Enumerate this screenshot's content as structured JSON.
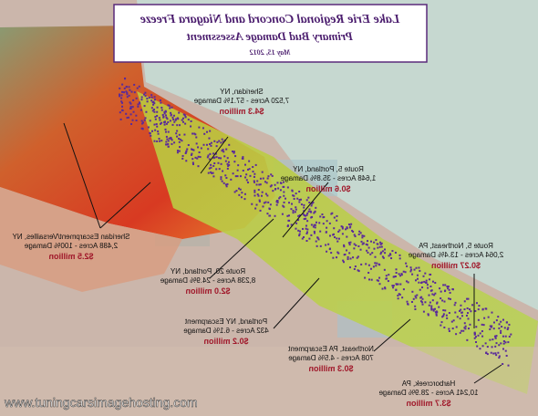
{
  "map": {
    "title": "Lake Erie Regional Concord and Niagara Freeze",
    "subtitle": "Primary Bud Damage Assessment",
    "date": "May 15, 2012",
    "regions": [
      {
        "name": "Sheridan, NY",
        "detail": "7,520 Acres - 57.1% Damage",
        "amount": "$4.3 million"
      },
      {
        "name": "Route 5, Portland, NY",
        "detail": "1,648 Acres - 35.8% Damage",
        "amount": "$0.6 million"
      },
      {
        "name": "Sheridan Escarpment/Versailles, NY",
        "detail": "2,488 Acres - 100% Damage",
        "amount": "$2.5 million"
      },
      {
        "name": "Route 5, Northeast, PA",
        "detail": "2,064 Acres - 13.4% Damage",
        "amount": "$0.27 million"
      },
      {
        "name": "Route 20, Portland, NY",
        "detail": "8,238 Acres - 24.9% Damage",
        "amount": "$2.0 million"
      },
      {
        "name": "Portland, NY Escarpment",
        "detail": "432 Acres - 6.1% Damage",
        "amount": "$0.2 million"
      },
      {
        "name": "Northeast, PA Escarpment",
        "detail": "708 Acres - 4.5% Damage",
        "amount": "$0.3 million"
      },
      {
        "name": "Harborcreek, PA",
        "detail": "10,241 Acres - 28.9% Damage",
        "amount": "$3.7 million"
      }
    ],
    "watermark": "www.tuningcarsimagehosting.com"
  }
}
